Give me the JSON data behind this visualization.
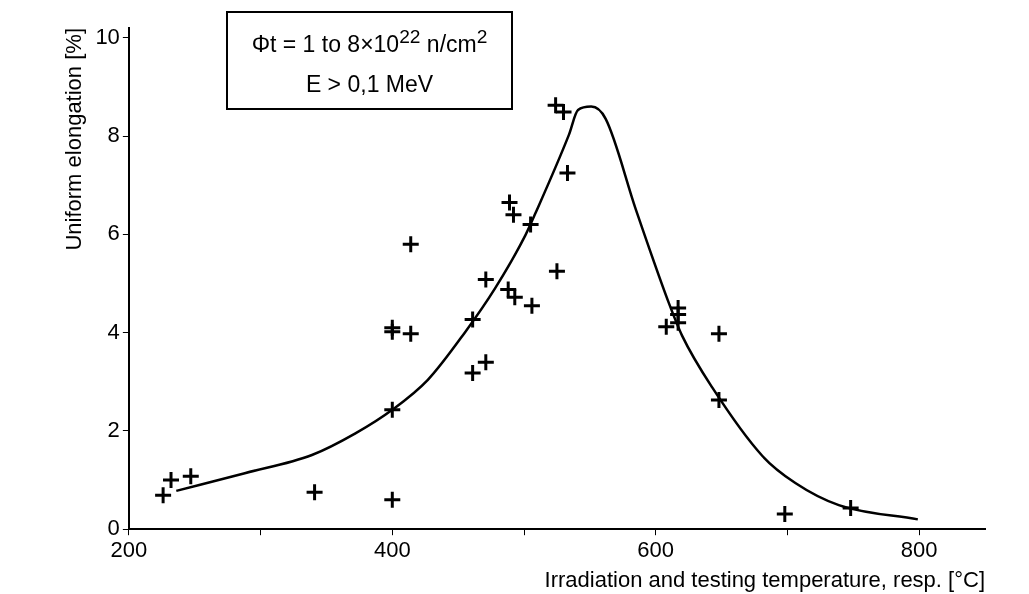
{
  "chart_data": {
    "type": "scatter",
    "xlabel": "Irradiation and testing temperature, resp. [°C]",
    "ylabel": "Uniform elongation [%]",
    "annotations": [
      "Φt = 1 to 8×10$^{22}$ n/cm$^{2}$",
      "E > 0,1 MeV"
    ],
    "xlim": [
      200,
      850
    ],
    "xticks": [
      200,
      {
        "value": 300,
        "label": null
      },
      400,
      {
        "value": 500,
        "label": null
      },
      600,
      {
        "value": 700,
        "label": null
      },
      800
    ],
    "ylim": [
      0,
      10.2
    ],
    "yticks": [
      0,
      2,
      4,
      6,
      8,
      10
    ],
    "series": [
      {
        "type": "scatter",
        "marker": "cross",
        "color": "#000000",
        "x": [
          226,
          232,
          247,
          341,
          400,
          400,
          400,
          400,
          414,
          414,
          461,
          461,
          471,
          471,
          488,
          489,
          492,
          493,
          505,
          506,
          524,
          525,
          530,
          533,
          608,
          617,
          617,
          617,
          648,
          648,
          698,
          748
        ],
        "values": [
          0.69,
          1.0,
          1.08,
          0.75,
          0.6,
          2.43,
          4.02,
          4.1,
          3.98,
          5.8,
          3.18,
          4.27,
          3.4,
          5.08,
          4.88,
          6.65,
          6.4,
          4.72,
          6.2,
          4.55,
          8.63,
          5.25,
          8.49,
          7.25,
          4.12,
          4.5,
          4.37,
          4.2,
          3.98,
          2.63,
          0.31,
          0.43
        ]
      },
      {
        "type": "line",
        "marker": "none",
        "line_style": "solid",
        "color": "#000000",
        "x": [
          236,
          288,
          339,
          372,
          400,
          427,
          455,
          478,
          501,
          509,
          534,
          541,
          551,
          562,
          585,
          610,
          620,
          643,
          681,
          706,
          739,
          799
        ],
        "values": [
          0.78,
          1.14,
          1.51,
          1.95,
          2.43,
          3.04,
          4.0,
          4.9,
          5.98,
          6.45,
          8.02,
          8.53,
          8.6,
          8.35,
          6.5,
          4.6,
          3.94,
          2.88,
          1.49,
          0.94,
          0.49,
          0.2
        ]
      }
    ]
  }
}
